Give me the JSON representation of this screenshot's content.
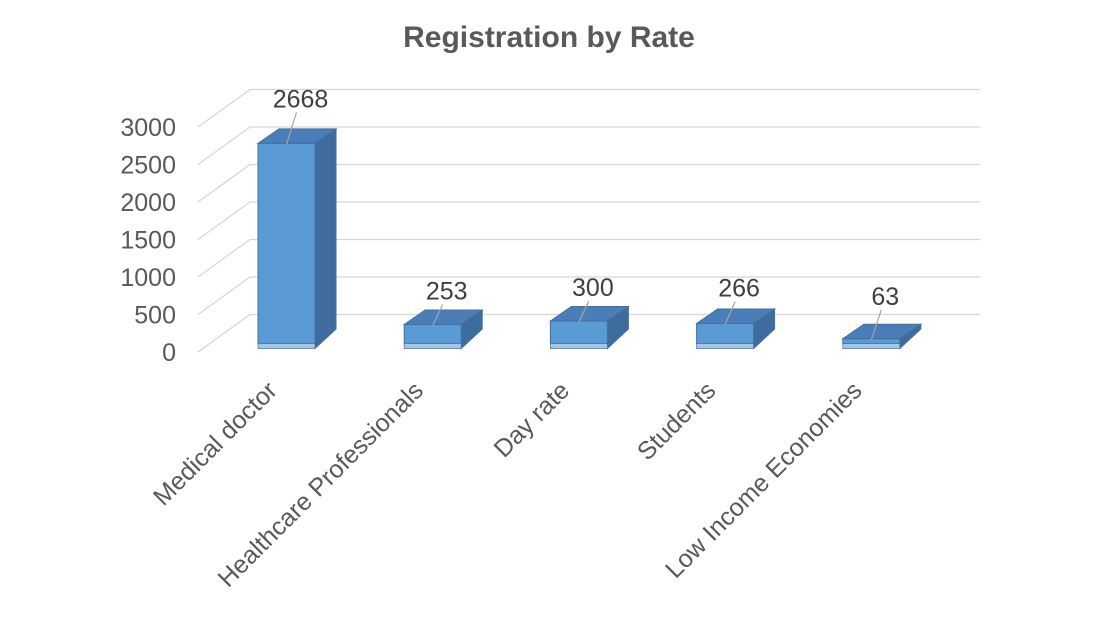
{
  "chart_data": {
    "type": "bar",
    "style": "3d-column",
    "title": "Registration by Rate",
    "categories": [
      "Medical doctor",
      "Healthcare Professionals",
      "Day rate",
      "Students",
      "Low Income Economies"
    ],
    "values": [
      2668,
      253,
      300,
      266,
      63
    ],
    "data_labels": [
      "2668",
      "253",
      "300",
      "266",
      "63"
    ],
    "xlabel": "",
    "ylabel": "",
    "ylim": [
      0,
      3000
    ],
    "yticks": [
      0,
      500,
      1000,
      1500,
      2000,
      2500,
      3000
    ],
    "grid": true,
    "legend": false,
    "category_label_rotation_deg": -45,
    "colors": {
      "background": "#ffffff",
      "bar_front": "#5B9BD5",
      "bar_top": "#4B7DB8",
      "bar_side": "#3E6C9E",
      "bar_bottom_lip": "#A3C6E8",
      "bar_outline": "#41719C",
      "gridline": "#D6D6D6",
      "leader_line": "#A6A6A6",
      "title_color": "#595959",
      "tick_label_color": "#595959",
      "data_label_color": "#3F3F3F"
    }
  }
}
